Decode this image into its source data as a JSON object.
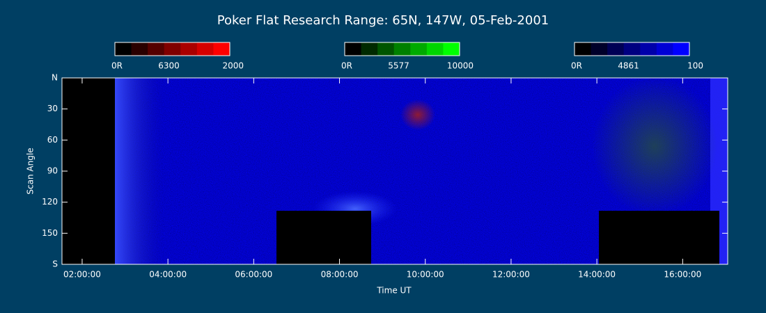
{
  "chart_data": {
    "type": "keogram",
    "title": "Poker Flat Research Range: 65N, 147W, 05-Feb-2001",
    "xlabel": "Time UT",
    "ylabel": "Scan Angle",
    "xlim": [
      1.53,
      17.05
    ],
    "xticks": [
      {
        "value": 2,
        "label": "02:00:00"
      },
      {
        "value": 4,
        "label": "04:00:00"
      },
      {
        "value": 6,
        "label": "06:00:00"
      },
      {
        "value": 8,
        "label": "08:00:00"
      },
      {
        "value": 10,
        "label": "10:00:00"
      },
      {
        "value": 12,
        "label": "12:00:00"
      },
      {
        "value": 14,
        "label": "14:00:00"
      },
      {
        "value": 16,
        "label": "16:00:00"
      }
    ],
    "ylim": [
      0,
      180
    ],
    "yticks": [
      {
        "value": 0,
        "label": "N"
      },
      30,
      60,
      90,
      120,
      150,
      {
        "value": 180,
        "label": "S"
      }
    ],
    "colorbars": [
      {
        "name": "6300",
        "min_label": "0R",
        "max": 2000,
        "colors": [
          "#000000",
          "#2a0000",
          "#550000",
          "#800000",
          "#aa0000",
          "#d50000",
          "#ff0000"
        ]
      },
      {
        "name": "5577",
        "min_label": "0R",
        "max": 10000,
        "colors": [
          "#000000",
          "#002a00",
          "#005500",
          "#008000",
          "#00aa00",
          "#00d500",
          "#00ff00"
        ]
      },
      {
        "name": "4861",
        "min_label": "0R",
        "max": 100,
        "colors": [
          "#000000",
          "#00002a",
          "#000055",
          "#000080",
          "#0000aa",
          "#0000d5",
          "#0000ff"
        ]
      }
    ]
  }
}
